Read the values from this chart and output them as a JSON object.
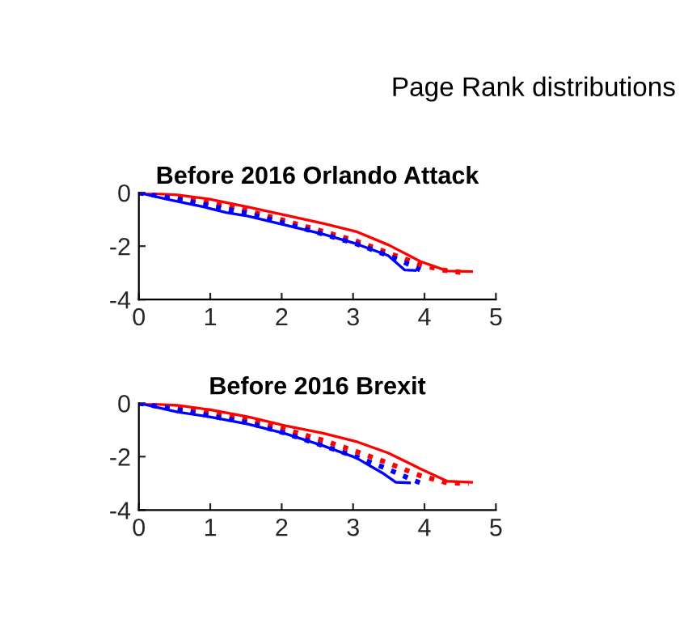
{
  "chart_data": [
    {
      "type": "other",
      "title": "Page Rank distributions"
    },
    {
      "type": "line",
      "title": "Before 2016 Orlando Attack",
      "xlim": [
        0,
        5
      ],
      "xticks": [
        0,
        1,
        2,
        3,
        4,
        5
      ],
      "ylim": [
        -4,
        0
      ],
      "yticks": [
        -4,
        -2,
        0
      ],
      "grid": false,
      "legend": false,
      "series": [
        {
          "color": "#ff0000",
          "line_style": "solid",
          "x": [
            0,
            0.54,
            0.99,
            1.53,
            2.05,
            2.58,
            3.04,
            3.5,
            3.94,
            4.32,
            4.66
          ],
          "values": [
            0,
            -0.08,
            -0.24,
            -0.54,
            -0.84,
            -1.15,
            -1.45,
            -1.96,
            -2.57,
            -2.93,
            -2.95
          ]
        },
        {
          "color": "#ff0000",
          "line_style": "dotted",
          "x": [
            0,
            0.54,
            0.99,
            1.53,
            2.05,
            2.58,
            3.04,
            3.49,
            3.94,
            4.24,
            4.55
          ],
          "values": [
            0,
            -0.18,
            -0.38,
            -0.68,
            -1.05,
            -1.45,
            -1.81,
            -2.25,
            -2.69,
            -2.89,
            -3.0
          ]
        },
        {
          "color": "#0000ff",
          "line_style": "dotted",
          "x": [
            0,
            0.54,
            0.99,
            1.53,
            2.05,
            2.58,
            3.04,
            3.49,
            3.79,
            3.94
          ],
          "values": [
            0,
            -0.24,
            -0.48,
            -0.78,
            -1.15,
            -1.55,
            -1.91,
            -2.35,
            -2.69,
            -2.89
          ]
        },
        {
          "color": "#0000ff",
          "line_style": "solid",
          "x": [
            0,
            0.39,
            0.92,
            1.22,
            1.53,
            2.05,
            2.58,
            3.04,
            3.49,
            3.72,
            3.87
          ],
          "values": [
            0,
            -0.24,
            -0.54,
            -0.74,
            -0.88,
            -1.21,
            -1.55,
            -1.91,
            -2.35,
            -2.89,
            -2.91
          ]
        }
      ]
    },
    {
      "type": "line",
      "title": "Before 2016 Brexit",
      "xlim": [
        0,
        5
      ],
      "xticks": [
        0,
        1,
        2,
        3,
        4,
        5
      ],
      "ylim": [
        -4,
        0
      ],
      "yticks": [
        -4,
        -2,
        0
      ],
      "grid": false,
      "legend": false,
      "series": [
        {
          "color": "#ff0000",
          "line_style": "solid",
          "x": [
            0,
            0.54,
            0.99,
            1.53,
            2.05,
            2.58,
            3.04,
            3.49,
            3.94,
            4.32,
            4.66
          ],
          "values": [
            0,
            -0.08,
            -0.24,
            -0.51,
            -0.84,
            -1.12,
            -1.43,
            -1.86,
            -2.45,
            -2.92,
            -2.96
          ]
        },
        {
          "color": "#ff0000",
          "line_style": "dotted",
          "x": [
            0,
            0.54,
            0.99,
            1.53,
            2.05,
            2.58,
            3.04,
            3.49,
            3.94,
            4.32,
            4.62
          ],
          "values": [
            0,
            -0.16,
            -0.37,
            -0.63,
            -0.98,
            -1.39,
            -1.8,
            -2.24,
            -2.71,
            -2.98,
            -3.0
          ]
        },
        {
          "color": "#0000ff",
          "line_style": "dotted",
          "x": [
            0,
            0.54,
            0.99,
            1.53,
            2.05,
            2.58,
            3.04,
            3.49,
            3.79,
            3.94
          ],
          "values": [
            0,
            -0.24,
            -0.47,
            -0.73,
            -1.12,
            -1.59,
            -2.0,
            -2.47,
            -2.82,
            -2.98
          ]
        },
        {
          "color": "#0000ff",
          "line_style": "solid",
          "x": [
            0,
            0.54,
            0.99,
            1.53,
            2.05,
            2.58,
            3.04,
            3.41,
            3.6,
            3.79
          ],
          "values": [
            0,
            -0.33,
            -0.51,
            -0.78,
            -1.14,
            -1.59,
            -2.04,
            -2.61,
            -2.96,
            -2.98
          ]
        }
      ]
    }
  ]
}
